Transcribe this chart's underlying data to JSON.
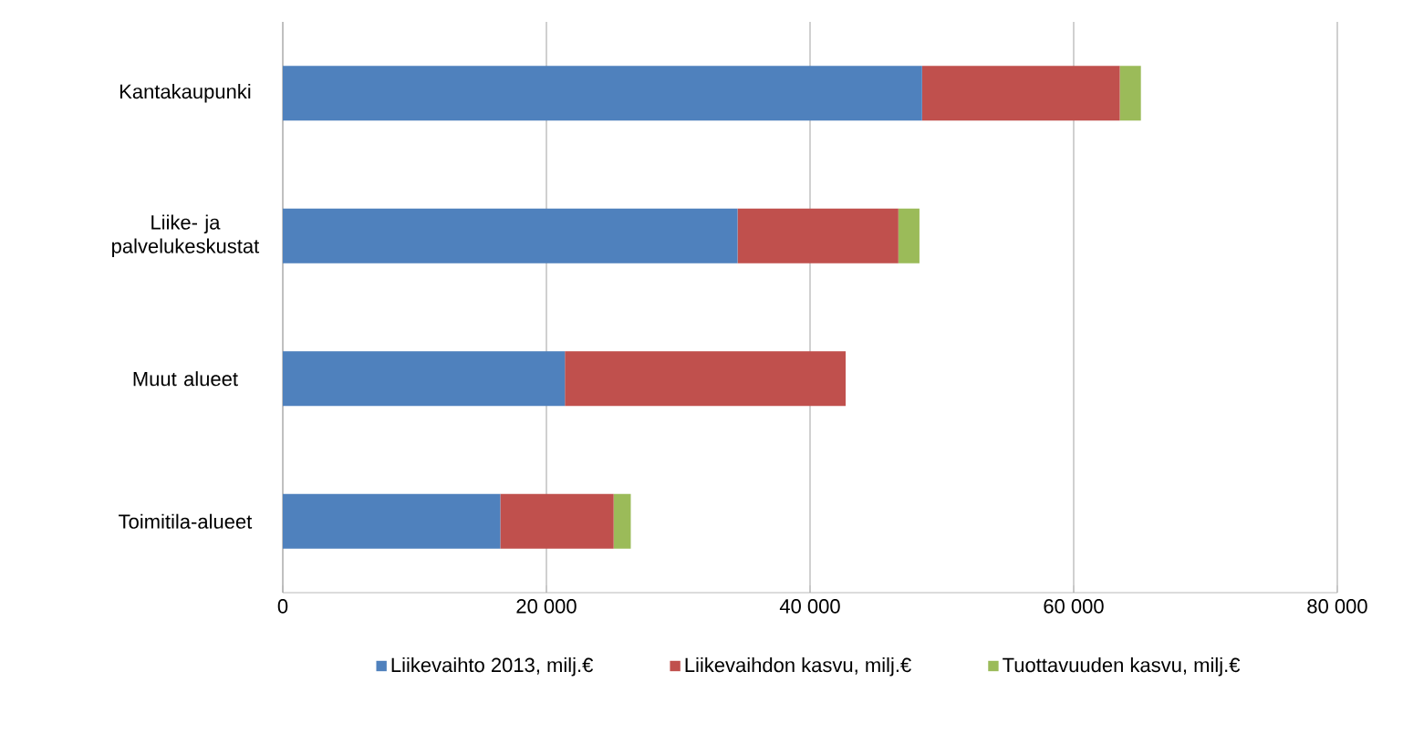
{
  "chart_data": {
    "type": "bar",
    "orientation": "horizontal",
    "stacked": true,
    "categories": [
      "Kantakaupunki",
      "Liike- ja palvelukeskustat",
      "Muut alueet",
      "Toimitila-alueet"
    ],
    "series": [
      {
        "name": "Liikevaihto 2013, milj.€",
        "color": "#4f81bd",
        "values": [
          48500,
          34500,
          21400,
          16500
        ]
      },
      {
        "name": "Liikevaihdon kasvu, milj.€",
        "color": "#c0504d",
        "values": [
          15000,
          12200,
          21300,
          8600
        ]
      },
      {
        "name": "Tuottavuuden kasvu, milj.€",
        "color": "#9bbb59",
        "values": [
          1600,
          1600,
          null,
          1300
        ]
      }
    ],
    "xlim": [
      0,
      80000
    ],
    "xticks": [
      0,
      {
        "value": 20000,
        "label": "20 000"
      },
      {
        "value": 40000,
        "label": "40 000"
      },
      {
        "value": 60000,
        "label": "60 000"
      },
      {
        "value": 80000,
        "label": "80 000"
      }
    ],
    "grid": "x",
    "legend": "bottom"
  }
}
